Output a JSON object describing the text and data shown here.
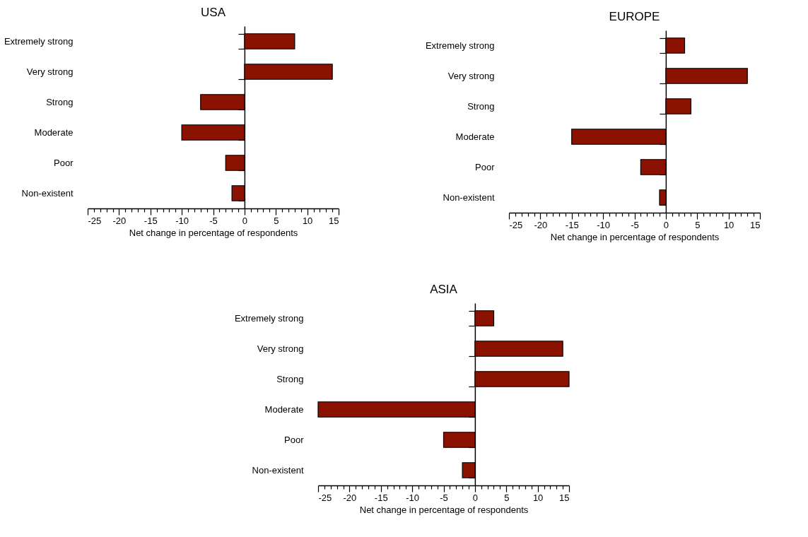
{
  "chart_data": [
    {
      "type": "bar",
      "orientation": "horizontal",
      "title": "USA",
      "xlabel": "Net change in percentage of respondents",
      "categories": [
        "Extremely strong",
        "Very strong",
        "Strong",
        "Moderate",
        "Poor",
        "Non-existent"
      ],
      "values": [
        8,
        14,
        -7,
        -10,
        -3,
        -2
      ],
      "color": "#8b1200",
      "xlim": [
        -25,
        15
      ],
      "xticks": [
        -25,
        {
          "value": -24,
          "label": null
        },
        {
          "value": -23,
          "label": null
        },
        {
          "value": -22,
          "label": null
        },
        {
          "value": -21,
          "label": null
        },
        -20,
        {
          "value": -19,
          "label": null
        },
        {
          "value": -18,
          "label": null
        },
        {
          "value": -17,
          "label": null
        },
        {
          "value": -16,
          "label": null
        },
        -15,
        {
          "value": -14,
          "label": null
        },
        {
          "value": -13,
          "label": null
        },
        {
          "value": -12,
          "label": null
        },
        {
          "value": -11,
          "label": null
        },
        -10,
        {
          "value": -9,
          "label": null
        },
        {
          "value": -8,
          "label": null
        },
        {
          "value": -7,
          "label": null
        },
        {
          "value": -6,
          "label": null
        },
        -5,
        {
          "value": -4,
          "label": null
        },
        {
          "value": -3,
          "label": null
        },
        {
          "value": -2,
          "label": null
        },
        {
          "value": -1,
          "label": null
        },
        0,
        {
          "value": 1,
          "label": null
        },
        {
          "value": 2,
          "label": null
        },
        {
          "value": 3,
          "label": null
        },
        {
          "value": 4,
          "label": null
        },
        5,
        {
          "value": 6,
          "label": null
        },
        {
          "value": 7,
          "label": null
        },
        {
          "value": 8,
          "label": null
        },
        {
          "value": 9,
          "label": null
        },
        10,
        {
          "value": 11,
          "label": null
        },
        {
          "value": 12,
          "label": null
        },
        {
          "value": 13,
          "label": null
        },
        {
          "value": 14,
          "label": null
        },
        15
      ]
    },
    {
      "type": "bar",
      "orientation": "horizontal",
      "title": "EUROPE",
      "xlabel": "Net change in percentage of respondents",
      "categories": [
        "Extremely strong",
        "Very strong",
        "Strong",
        "Moderate",
        "Poor",
        "Non-existent"
      ],
      "values": [
        3,
        13,
        4,
        -15,
        -4,
        -1
      ],
      "color": "#8b1200",
      "xlim": [
        -25,
        15
      ],
      "xticks": [
        -25,
        {
          "value": -24,
          "label": null
        },
        {
          "value": -23,
          "label": null
        },
        {
          "value": -22,
          "label": null
        },
        {
          "value": -21,
          "label": null
        },
        -20,
        {
          "value": -19,
          "label": null
        },
        {
          "value": -18,
          "label": null
        },
        {
          "value": -17,
          "label": null
        },
        {
          "value": -16,
          "label": null
        },
        -15,
        {
          "value": -14,
          "label": null
        },
        {
          "value": -13,
          "label": null
        },
        {
          "value": -12,
          "label": null
        },
        {
          "value": -11,
          "label": null
        },
        -10,
        {
          "value": -9,
          "label": null
        },
        {
          "value": -8,
          "label": null
        },
        {
          "value": -7,
          "label": null
        },
        {
          "value": -6,
          "label": null
        },
        -5,
        {
          "value": -4,
          "label": null
        },
        {
          "value": -3,
          "label": null
        },
        {
          "value": -2,
          "label": null
        },
        {
          "value": -1,
          "label": null
        },
        0,
        {
          "value": 1,
          "label": null
        },
        {
          "value": 2,
          "label": null
        },
        {
          "value": 3,
          "label": null
        },
        {
          "value": 4,
          "label": null
        },
        5,
        {
          "value": 6,
          "label": null
        },
        {
          "value": 7,
          "label": null
        },
        {
          "value": 8,
          "label": null
        },
        {
          "value": 9,
          "label": null
        },
        10,
        {
          "value": 11,
          "label": null
        },
        {
          "value": 12,
          "label": null
        },
        {
          "value": 13,
          "label": null
        },
        {
          "value": 14,
          "label": null
        },
        15
      ]
    },
    {
      "type": "bar",
      "orientation": "horizontal",
      "title": "ASIA",
      "xlabel": "Net change in percentage of respondents",
      "categories": [
        "Extremely strong",
        "Very strong",
        "Strong",
        "Moderate",
        "Poor",
        "Non-existent"
      ],
      "values": [
        3,
        14,
        15,
        -25,
        -5,
        -2
      ],
      "color": "#8b1200",
      "xlim": [
        -25,
        15
      ],
      "xticks": [
        -25,
        {
          "value": -24,
          "label": null
        },
        {
          "value": -23,
          "label": null
        },
        {
          "value": -22,
          "label": null
        },
        {
          "value": -21,
          "label": null
        },
        -20,
        {
          "value": -19,
          "label": null
        },
        {
          "value": -18,
          "label": null
        },
        {
          "value": -17,
          "label": null
        },
        {
          "value": -16,
          "label": null
        },
        -15,
        {
          "value": -14,
          "label": null
        },
        {
          "value": -13,
          "label": null
        },
        {
          "value": -12,
          "label": null
        },
        {
          "value": -11,
          "label": null
        },
        -10,
        {
          "value": -9,
          "label": null
        },
        {
          "value": -8,
          "label": null
        },
        {
          "value": -7,
          "label": null
        },
        {
          "value": -6,
          "label": null
        },
        -5,
        {
          "value": -4,
          "label": null
        },
        {
          "value": -3,
          "label": null
        },
        {
          "value": -2,
          "label": null
        },
        {
          "value": -1,
          "label": null
        },
        0,
        {
          "value": 1,
          "label": null
        },
        {
          "value": 2,
          "label": null
        },
        {
          "value": 3,
          "label": null
        },
        {
          "value": 4,
          "label": null
        },
        5,
        {
          "value": 6,
          "label": null
        },
        {
          "value": 7,
          "label": null
        },
        {
          "value": 8,
          "label": null
        },
        {
          "value": 9,
          "label": null
        },
        10,
        {
          "value": 11,
          "label": null
        },
        {
          "value": 12,
          "label": null
        },
        {
          "value": 13,
          "label": null
        },
        {
          "value": 14,
          "label": null
        },
        15
      ]
    }
  ]
}
